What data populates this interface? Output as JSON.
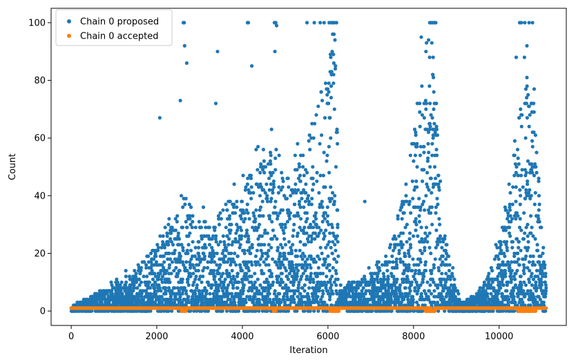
{
  "chart_data": {
    "type": "scatter",
    "title": "",
    "xlabel": "Iteration",
    "ylabel": "Count",
    "xlim": [
      -470,
      11570
    ],
    "ylim": [
      -5,
      105
    ],
    "xticks": [
      0,
      2000,
      4000,
      6000,
      8000,
      10000
    ],
    "yticks": [
      0,
      20,
      40,
      60,
      80,
      100
    ],
    "grid": false,
    "legend_position": "top-left",
    "point_count_approx": 11100,
    "series": [
      {
        "name": "Chain 0 proposed",
        "color": "#1f77b4",
        "envelope": {
          "description_points_x": [
            0,
            300,
            600,
            1000,
            1500,
            2000,
            2400,
            2650,
            2900,
            3400,
            3700,
            3950,
            4150,
            4500,
            4750,
            5000,
            5400,
            5800,
            6000,
            6200,
            6250,
            6600,
            7000,
            7400,
            7800,
            8100,
            8300,
            8450,
            8650,
            8950,
            9100,
            9500,
            9800,
            10100,
            10400,
            10600,
            10800,
            11050
          ],
          "typical_max": [
            1,
            4,
            6,
            9,
            14,
            22,
            30,
            44,
            30,
            32,
            38,
            36,
            46,
            50,
            55,
            45,
            52,
            70,
            90,
            95,
            8,
            10,
            14,
            20,
            40,
            70,
            90,
            95,
            30,
            12,
            3,
            6,
            14,
            30,
            60,
            85,
            70,
            18
          ]
        },
        "notable_points": [
          {
            "x": 2620,
            "y": 100
          },
          {
            "x": 2640,
            "y": 100
          },
          {
            "x": 2650,
            "y": 92
          },
          {
            "x": 2700,
            "y": 86
          },
          {
            "x": 2550,
            "y": 73
          },
          {
            "x": 2070,
            "y": 67
          },
          {
            "x": 3420,
            "y": 90
          },
          {
            "x": 3380,
            "y": 72
          },
          {
            "x": 4120,
            "y": 100
          },
          {
            "x": 4140,
            "y": 100
          },
          {
            "x": 4750,
            "y": 100
          },
          {
            "x": 4780,
            "y": 100
          },
          {
            "x": 4800,
            "y": 99
          },
          {
            "x": 4760,
            "y": 90
          },
          {
            "x": 4220,
            "y": 85
          },
          {
            "x": 5510,
            "y": 100
          },
          {
            "x": 5680,
            "y": 100
          },
          {
            "x": 5820,
            "y": 100
          },
          {
            "x": 5910,
            "y": 100
          },
          {
            "x": 6030,
            "y": 100
          },
          {
            "x": 6080,
            "y": 100
          },
          {
            "x": 6150,
            "y": 100
          },
          {
            "x": 6200,
            "y": 100
          },
          {
            "x": 6110,
            "y": 96
          },
          {
            "x": 8380,
            "y": 100
          },
          {
            "x": 8410,
            "y": 100
          },
          {
            "x": 8450,
            "y": 100
          },
          {
            "x": 8490,
            "y": 100
          },
          {
            "x": 8520,
            "y": 100
          },
          {
            "x": 8290,
            "y": 90
          },
          {
            "x": 8180,
            "y": 95
          },
          {
            "x": 6860,
            "y": 38
          },
          {
            "x": 10480,
            "y": 100
          },
          {
            "x": 10520,
            "y": 100
          },
          {
            "x": 10600,
            "y": 100
          },
          {
            "x": 10700,
            "y": 100
          },
          {
            "x": 10780,
            "y": 100
          },
          {
            "x": 10650,
            "y": 92
          },
          {
            "x": 10400,
            "y": 88
          },
          {
            "x": 10820,
            "y": 77
          }
        ]
      },
      {
        "name": "Chain 0 accepted",
        "color": "#ff7f0e",
        "values_note": "nearly all points at y=1 across iterations 0–11100, occasional points at y=0",
        "zero_regions_x": [
          [
            2580,
            2680
          ],
          [
            4730,
            4800
          ],
          [
            6050,
            6250
          ],
          [
            8280,
            8500
          ],
          [
            10450,
            10850
          ]
        ]
      }
    ]
  },
  "legend": {
    "entries": [
      {
        "label": "Chain 0 proposed",
        "color": "#1f77b4"
      },
      {
        "label": "Chain 0 accepted",
        "color": "#ff7f0e"
      }
    ]
  }
}
